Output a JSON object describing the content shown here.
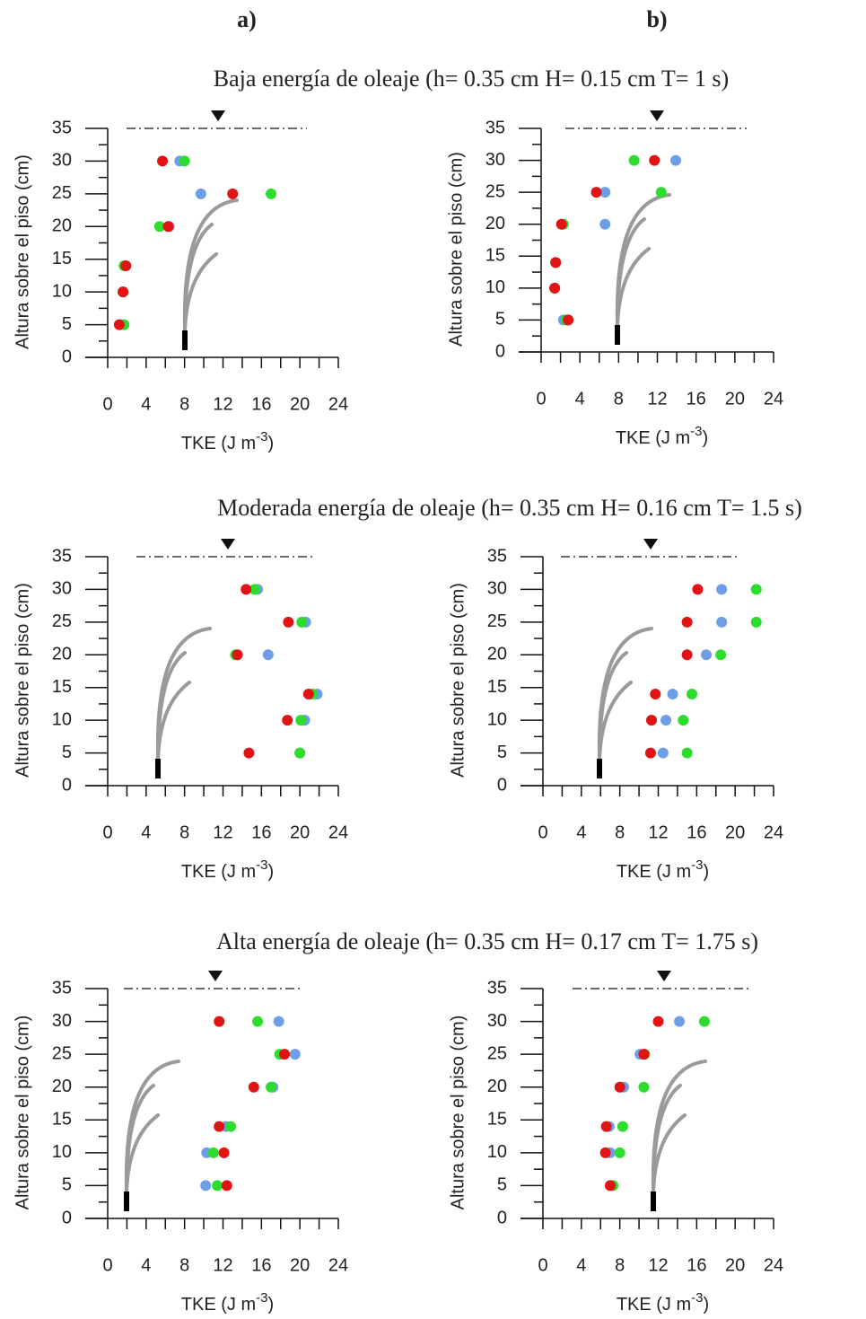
{
  "panel_labels": [
    "a)",
    "b)"
  ],
  "row_titles": [
    "Baja energía de oleaje (h= 0.35 cm   H= 0.15 cm   T= 1 s)",
    "Moderada energía de oleaje (h= 0.35 cm   H= 0.16 cm   T= 1.5 s)",
    "Alta energía de oleaje (h= 0.35 cm   H= 0.17 cm   T= 1.75 s)"
  ],
  "chart_data": [
    {
      "type": "scatter",
      "xlabel": [
        "TKE (J m",
        "-3",
        ")"
      ],
      "ylabel": "Altura sobre el piso (cm)",
      "xlim": [
        0,
        24
      ],
      "xticks": [
        0,
        4,
        8,
        12,
        16,
        20,
        24
      ],
      "ylim": [
        0,
        35
      ],
      "yticks": [
        0,
        5,
        10,
        15,
        20,
        25,
        30,
        35
      ],
      "series": [
        {
          "color": "#6f9ee8",
          "x": [
            1.4,
            1.6,
            1.8,
            6.4,
            9.7,
            7.5
          ],
          "values": [
            5,
            10,
            14,
            20,
            25,
            30
          ]
        },
        {
          "color": "#2edc2e",
          "x": [
            1.7,
            1.6,
            1.7,
            5.4,
            17.0,
            8.0
          ],
          "values": [
            5,
            10,
            14,
            20,
            25,
            30
          ]
        },
        {
          "color": "#e01414",
          "x": [
            1.2,
            1.6,
            1.9,
            6.3,
            13.0,
            5.7
          ],
          "values": [
            5,
            10,
            14,
            20,
            25,
            30
          ]
        }
      ]
    },
    {
      "type": "scatter",
      "xlabel": [
        "TKE (J m",
        "-3",
        ")"
      ],
      "ylabel": "Altura sobre el piso (cm)",
      "xlim": [
        0,
        24
      ],
      "xticks": [
        0,
        4,
        8,
        12,
        16,
        20,
        24
      ],
      "ylim": [
        0,
        35
      ],
      "yticks": [
        0,
        5,
        10,
        15,
        20,
        25,
        30,
        35
      ],
      "series": [
        {
          "color": "#6f9ee8",
          "x": [
            2.3,
            1.4,
            1.5,
            6.6,
            6.6,
            13.9
          ],
          "values": [
            5,
            10,
            14,
            20,
            25,
            30
          ]
        },
        {
          "color": "#2edc2e",
          "x": [
            2.6,
            1.4,
            1.5,
            2.3,
            12.4,
            9.6
          ],
          "values": [
            5,
            10,
            14,
            20,
            25,
            30
          ]
        },
        {
          "color": "#e01414",
          "x": [
            2.8,
            1.4,
            1.5,
            2.1,
            5.7,
            11.7
          ],
          "values": [
            5,
            10,
            14,
            20,
            25,
            30
          ]
        }
      ]
    },
    {
      "type": "scatter",
      "xlabel": [
        "TKE (J m",
        "-3",
        ")"
      ],
      "ylabel": "Altura sobre el piso (cm)",
      "xlim": [
        0,
        24
      ],
      "xticks": [
        0,
        4,
        8,
        12,
        16,
        20,
        24
      ],
      "ylim": [
        0,
        35
      ],
      "yticks": [
        0,
        5,
        10,
        15,
        20,
        25,
        30,
        35
      ],
      "series": [
        {
          "color": "#6f9ee8",
          "x": [
            20.0,
            20.5,
            21.8,
            16.7,
            20.6,
            15.6
          ],
          "values": [
            5,
            10,
            14,
            20,
            25,
            30
          ]
        },
        {
          "color": "#2edc2e",
          "x": [
            20.0,
            20.1,
            21.3,
            13.3,
            20.2,
            15.3
          ],
          "values": [
            5,
            10,
            14,
            20,
            25,
            30
          ]
        },
        {
          "color": "#e01414",
          "x": [
            14.7,
            18.7,
            20.9,
            13.5,
            18.8,
            14.4
          ],
          "values": [
            5,
            10,
            14,
            20,
            25,
            30
          ]
        }
      ]
    },
    {
      "type": "scatter",
      "xlabel": [
        "TKE (J m",
        "-3",
        ")"
      ],
      "ylabel": "Altura sobre el piso (cm)",
      "xlim": [
        0,
        24
      ],
      "xticks": [
        0,
        4,
        8,
        12,
        16,
        20,
        24
      ],
      "ylim": [
        0,
        35
      ],
      "yticks": [
        0,
        5,
        10,
        15,
        20,
        25,
        30,
        35
      ],
      "series": [
        {
          "color": "#6f9ee8",
          "x": [
            12.5,
            12.8,
            13.5,
            17.0,
            18.6,
            18.6
          ],
          "values": [
            5,
            10,
            14,
            20,
            25,
            30
          ]
        },
        {
          "color": "#2edc2e",
          "x": [
            15.0,
            14.6,
            15.5,
            18.5,
            22.2,
            22.2
          ],
          "values": [
            5,
            10,
            14,
            20,
            25,
            30
          ]
        },
        {
          "color": "#e01414",
          "x": [
            11.2,
            11.3,
            11.7,
            15.0,
            15.0,
            16.1
          ],
          "values": [
            5,
            10,
            14,
            20,
            25,
            30
          ]
        }
      ]
    },
    {
      "type": "scatter",
      "xlabel": [
        "TKE (J m",
        "-3",
        ")"
      ],
      "ylabel": "Altura sobre el piso (cm)",
      "xlim": [
        0,
        24
      ],
      "xticks": [
        0,
        4,
        8,
        12,
        16,
        20,
        24
      ],
      "ylim": [
        0,
        35
      ],
      "yticks": [
        0,
        5,
        10,
        15,
        20,
        25,
        30,
        35
      ],
      "series": [
        {
          "color": "#6f9ee8",
          "x": [
            10.2,
            10.3,
            12.3,
            17.2,
            19.5,
            17.8
          ],
          "values": [
            5,
            10,
            14,
            20,
            25,
            30
          ]
        },
        {
          "color": "#2edc2e",
          "x": [
            11.4,
            11.0,
            12.8,
            17.0,
            17.9,
            15.6
          ],
          "values": [
            5,
            10,
            14,
            20,
            25,
            30
          ]
        },
        {
          "color": "#e01414",
          "x": [
            12.4,
            12.1,
            11.6,
            15.2,
            18.4,
            11.6
          ],
          "values": [
            5,
            10,
            14,
            20,
            25,
            30
          ]
        }
      ]
    },
    {
      "type": "scatter",
      "xlabel": [
        "TKE (J m",
        "-3",
        ")"
      ],
      "ylabel": "Altura sobre el piso (cm)",
      "xlim": [
        0,
        24
      ],
      "xticks": [
        0,
        4,
        8,
        12,
        16,
        20,
        24
      ],
      "ylim": [
        0,
        35
      ],
      "yticks": [
        0,
        5,
        10,
        15,
        20,
        25,
        30,
        35
      ],
      "series": [
        {
          "color": "#6f9ee8",
          "x": [
            7.1,
            7.0,
            6.9,
            8.4,
            10.1,
            14.2
          ],
          "values": [
            5,
            10,
            14,
            20,
            25,
            30
          ]
        },
        {
          "color": "#2edc2e",
          "x": [
            7.3,
            8.0,
            8.3,
            10.5,
            10.6,
            16.8
          ],
          "values": [
            5,
            10,
            14,
            20,
            25,
            30
          ]
        },
        {
          "color": "#e01414",
          "x": [
            7.0,
            6.5,
            6.6,
            8.0,
            10.5,
            12.0
          ],
          "values": [
            5,
            10,
            14,
            20,
            25,
            30
          ]
        }
      ]
    }
  ]
}
